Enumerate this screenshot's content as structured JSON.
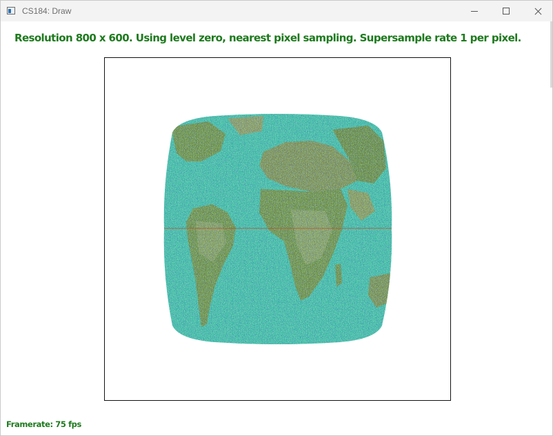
{
  "window": {
    "title": "CS184: Draw",
    "controls": {
      "minimize": "minimize-icon",
      "maximize": "maximize-icon",
      "close": "close-icon"
    }
  },
  "overlay": {
    "status": "Resolution 800 x 600. Using level zero, nearest pixel sampling. Supersample rate 1 per pixel.",
    "framerate": "Framerate: 75 fps"
  },
  "colors": {
    "status_text": "#1e7a1e",
    "ocean_base": "#3cbfa6",
    "land": "#6f8f3c",
    "land_light": "#9aa86a",
    "noise": [
      "#1a2a9a",
      "#c8d8ff",
      "#58e070",
      "#2f4fd0",
      "#ffffff",
      "#7a1a5a"
    ],
    "equator_line": "#c0502a"
  }
}
